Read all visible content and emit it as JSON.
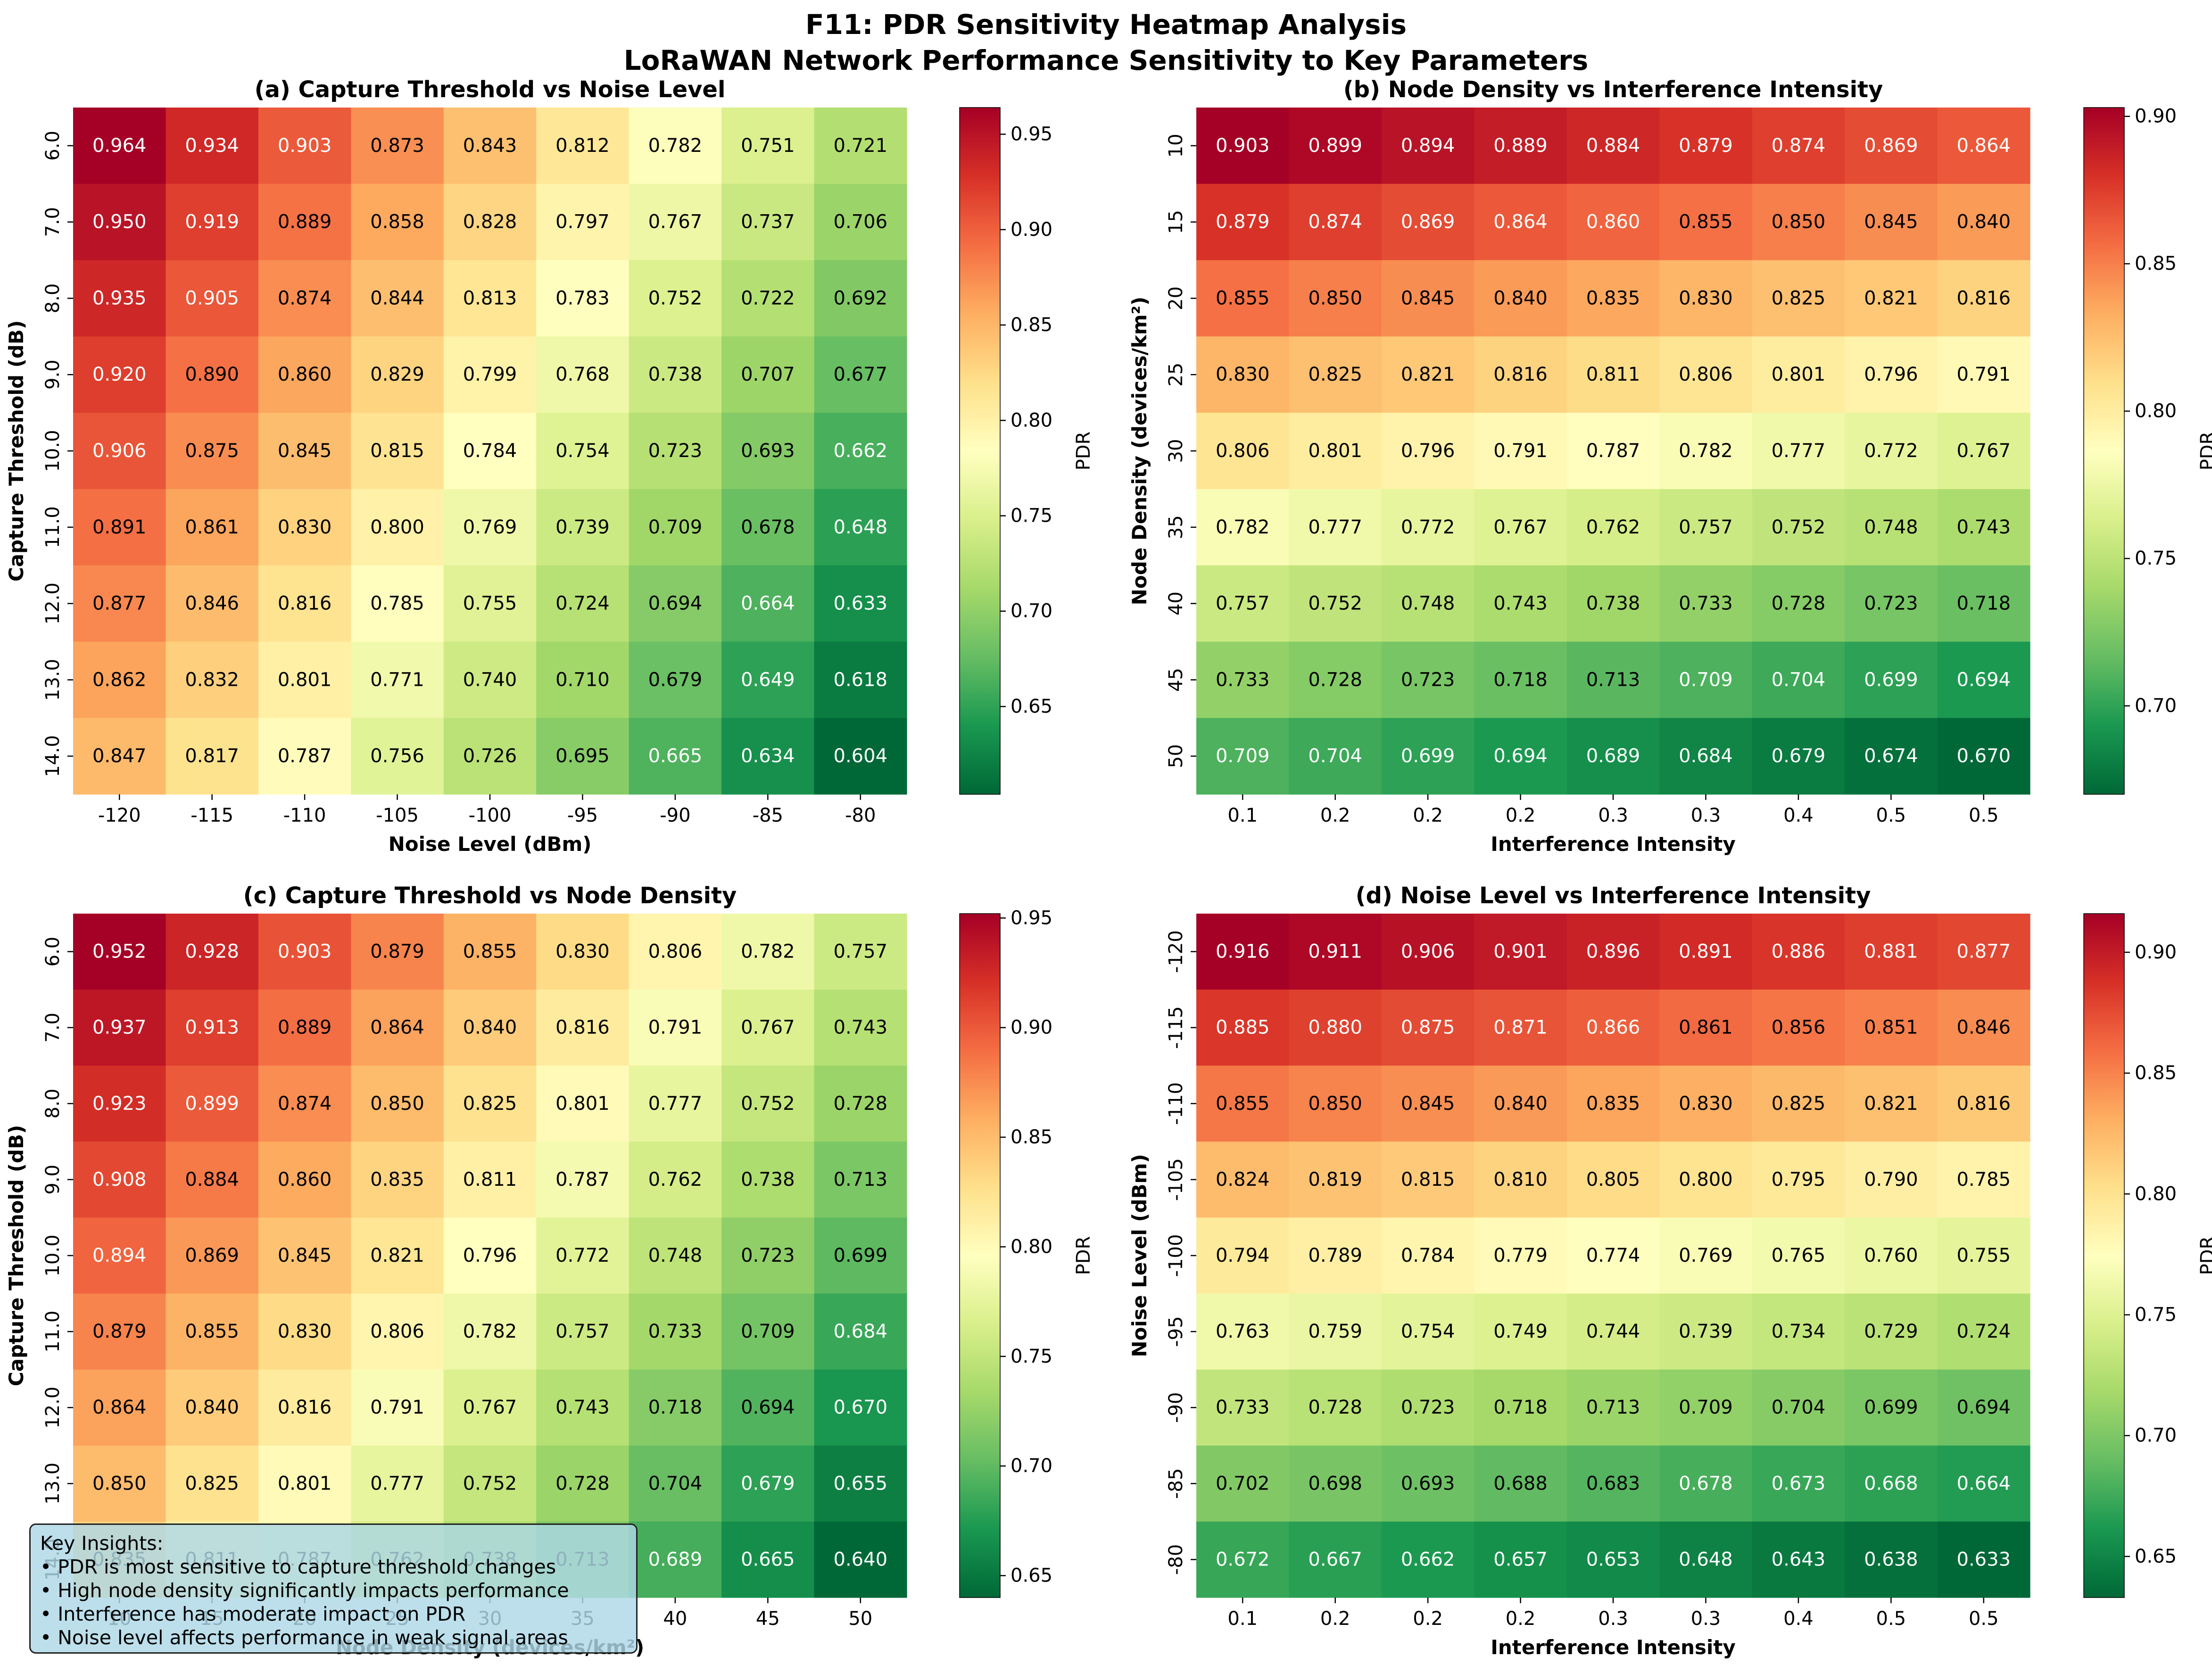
{
  "figure": {
    "title_line1": "F11: PDR Sensitivity Heatmap Analysis",
    "title_line2": "LoRaWAN Network Performance Sensitivity to Key Parameters"
  },
  "insights": {
    "heading": "Key Insights:",
    "items": [
      "• PDR is most sensitive to capture threshold changes",
      "• High node density significantly impacts performance",
      "• Interference has moderate impact on PDR",
      "• Noise level affects performance in weak signal areas"
    ]
  },
  "colormap": "RdYlGn_r",
  "chart_data": [
    {
      "type": "heatmap",
      "title": "(a) Capture Threshold vs Noise Level",
      "xlabel": "Noise Level (dBm)",
      "ylabel": "Capture Threshold (dB)",
      "x_ticks": [
        "-120",
        "-115",
        "-110",
        "-105",
        "-100",
        "-95",
        "-90",
        "-85",
        "-80"
      ],
      "y_ticks": [
        "6.0",
        "7.0",
        "8.0",
        "9.0",
        "10.0",
        "11.0",
        "12.0",
        "13.0",
        "14.0"
      ],
      "colorbar_label": "PDR",
      "colorbar_ticks": [
        "0.65",
        "0.70",
        "0.75",
        "0.80",
        "0.85",
        "0.90",
        "0.95"
      ],
      "vmin": 0.604,
      "vmax": 0.964,
      "values": [
        [
          0.964,
          0.934,
          0.903,
          0.873,
          0.843,
          0.812,
          0.782,
          0.751,
          0.721
        ],
        [
          0.95,
          0.919,
          0.889,
          0.858,
          0.828,
          0.797,
          0.767,
          0.737,
          0.706
        ],
        [
          0.935,
          0.905,
          0.874,
          0.844,
          0.813,
          0.783,
          0.752,
          0.722,
          0.692
        ],
        [
          0.92,
          0.89,
          0.86,
          0.829,
          0.799,
          0.768,
          0.738,
          0.707,
          0.677
        ],
        [
          0.906,
          0.875,
          0.845,
          0.815,
          0.784,
          0.754,
          0.723,
          0.693,
          0.662
        ],
        [
          0.891,
          0.861,
          0.83,
          0.8,
          0.769,
          0.739,
          0.709,
          0.678,
          0.648
        ],
        [
          0.877,
          0.846,
          0.816,
          0.785,
          0.755,
          0.724,
          0.694,
          0.664,
          0.633
        ],
        [
          0.862,
          0.832,
          0.801,
          0.771,
          0.74,
          0.71,
          0.679,
          0.649,
          0.618
        ],
        [
          0.847,
          0.817,
          0.787,
          0.756,
          0.726,
          0.695,
          0.665,
          0.634,
          0.604
        ]
      ]
    },
    {
      "type": "heatmap",
      "title": "(b) Node Density vs Interference Intensity",
      "xlabel": "Interference Intensity",
      "ylabel": "Node Density (devices/km²)",
      "x_ticks": [
        "0.1",
        "0.2",
        "0.2",
        "0.2",
        "0.3",
        "0.3",
        "0.4",
        "0.5",
        "0.5"
      ],
      "y_ticks": [
        "10",
        "15",
        "20",
        "25",
        "30",
        "35",
        "40",
        "45",
        "50"
      ],
      "colorbar_label": "PDR",
      "colorbar_ticks": [
        "0.70",
        "0.75",
        "0.80",
        "0.85",
        "0.90"
      ],
      "vmin": 0.67,
      "vmax": 0.903,
      "values": [
        [
          0.903,
          0.899,
          0.894,
          0.889,
          0.884,
          0.879,
          0.874,
          0.869,
          0.864
        ],
        [
          0.879,
          0.874,
          0.869,
          0.864,
          0.86,
          0.855,
          0.85,
          0.845,
          0.84
        ],
        [
          0.855,
          0.85,
          0.845,
          0.84,
          0.835,
          0.83,
          0.825,
          0.821,
          0.816
        ],
        [
          0.83,
          0.825,
          0.821,
          0.816,
          0.811,
          0.806,
          0.801,
          0.796,
          0.791
        ],
        [
          0.806,
          0.801,
          0.796,
          0.791,
          0.787,
          0.782,
          0.777,
          0.772,
          0.767
        ],
        [
          0.782,
          0.777,
          0.772,
          0.767,
          0.762,
          0.757,
          0.752,
          0.748,
          0.743
        ],
        [
          0.757,
          0.752,
          0.748,
          0.743,
          0.738,
          0.733,
          0.728,
          0.723,
          0.718
        ],
        [
          0.733,
          0.728,
          0.723,
          0.718,
          0.713,
          0.709,
          0.704,
          0.699,
          0.694
        ],
        [
          0.709,
          0.704,
          0.699,
          0.694,
          0.689,
          0.684,
          0.679,
          0.674,
          0.67
        ]
      ]
    },
    {
      "type": "heatmap",
      "title": "(c) Capture Threshold vs Node Density",
      "xlabel": "Node Density (devices/km²)",
      "ylabel": "Capture Threshold (dB)",
      "x_ticks": [
        "10",
        "15",
        "20",
        "25",
        "30",
        "35",
        "40",
        "45",
        "50"
      ],
      "y_ticks": [
        "6.0",
        "7.0",
        "8.0",
        "9.0",
        "10.0",
        "11.0",
        "12.0",
        "13.0",
        "14.0"
      ],
      "colorbar_label": "PDR",
      "colorbar_ticks": [
        "0.65",
        "0.70",
        "0.75",
        "0.80",
        "0.85",
        "0.90",
        "0.95"
      ],
      "vmin": 0.64,
      "vmax": 0.952,
      "values": [
        [
          0.952,
          0.928,
          0.903,
          0.879,
          0.855,
          0.83,
          0.806,
          0.782,
          0.757
        ],
        [
          0.937,
          0.913,
          0.889,
          0.864,
          0.84,
          0.816,
          0.791,
          0.767,
          0.743
        ],
        [
          0.923,
          0.899,
          0.874,
          0.85,
          0.825,
          0.801,
          0.777,
          0.752,
          0.728
        ],
        [
          0.908,
          0.884,
          0.86,
          0.835,
          0.811,
          0.787,
          0.762,
          0.738,
          0.713
        ],
        [
          0.894,
          0.869,
          0.845,
          0.821,
          0.796,
          0.772,
          0.748,
          0.723,
          0.699
        ],
        [
          0.879,
          0.855,
          0.83,
          0.806,
          0.782,
          0.757,
          0.733,
          0.709,
          0.684
        ],
        [
          0.864,
          0.84,
          0.816,
          0.791,
          0.767,
          0.743,
          0.718,
          0.694,
          0.67
        ],
        [
          0.85,
          0.825,
          0.801,
          0.777,
          0.752,
          0.728,
          0.704,
          0.679,
          0.655
        ],
        [
          0.835,
          0.811,
          0.787,
          0.762,
          0.738,
          0.713,
          0.689,
          0.665,
          0.64
        ]
      ]
    },
    {
      "type": "heatmap",
      "title": "(d) Noise Level vs Interference Intensity",
      "xlabel": "Interference Intensity",
      "ylabel": "Noise Level (dBm)",
      "x_ticks": [
        "0.1",
        "0.2",
        "0.2",
        "0.2",
        "0.3",
        "0.3",
        "0.4",
        "0.5",
        "0.5"
      ],
      "y_ticks": [
        "-120",
        "-115",
        "-110",
        "-105",
        "-100",
        "-95",
        "-90",
        "-85",
        "-80"
      ],
      "colorbar_label": "PDR",
      "colorbar_ticks": [
        "0.65",
        "0.70",
        "0.75",
        "0.80",
        "0.85",
        "0.90"
      ],
      "vmin": 0.633,
      "vmax": 0.916,
      "values": [
        [
          0.916,
          0.911,
          0.906,
          0.901,
          0.896,
          0.891,
          0.886,
          0.881,
          0.877
        ],
        [
          0.885,
          0.88,
          0.875,
          0.871,
          0.866,
          0.861,
          0.856,
          0.851,
          0.846
        ],
        [
          0.855,
          0.85,
          0.845,
          0.84,
          0.835,
          0.83,
          0.825,
          0.821,
          0.816
        ],
        [
          0.824,
          0.819,
          0.815,
          0.81,
          0.805,
          0.8,
          0.795,
          0.79,
          0.785
        ],
        [
          0.794,
          0.789,
          0.784,
          0.779,
          0.774,
          0.769,
          0.765,
          0.76,
          0.755
        ],
        [
          0.763,
          0.759,
          0.754,
          0.749,
          0.744,
          0.739,
          0.734,
          0.729,
          0.724
        ],
        [
          0.733,
          0.728,
          0.723,
          0.718,
          0.713,
          0.709,
          0.704,
          0.699,
          0.694
        ],
        [
          0.702,
          0.698,
          0.693,
          0.688,
          0.683,
          0.678,
          0.673,
          0.668,
          0.664
        ],
        [
          0.672,
          0.667,
          0.662,
          0.657,
          0.653,
          0.648,
          0.643,
          0.638,
          0.633
        ]
      ]
    }
  ]
}
